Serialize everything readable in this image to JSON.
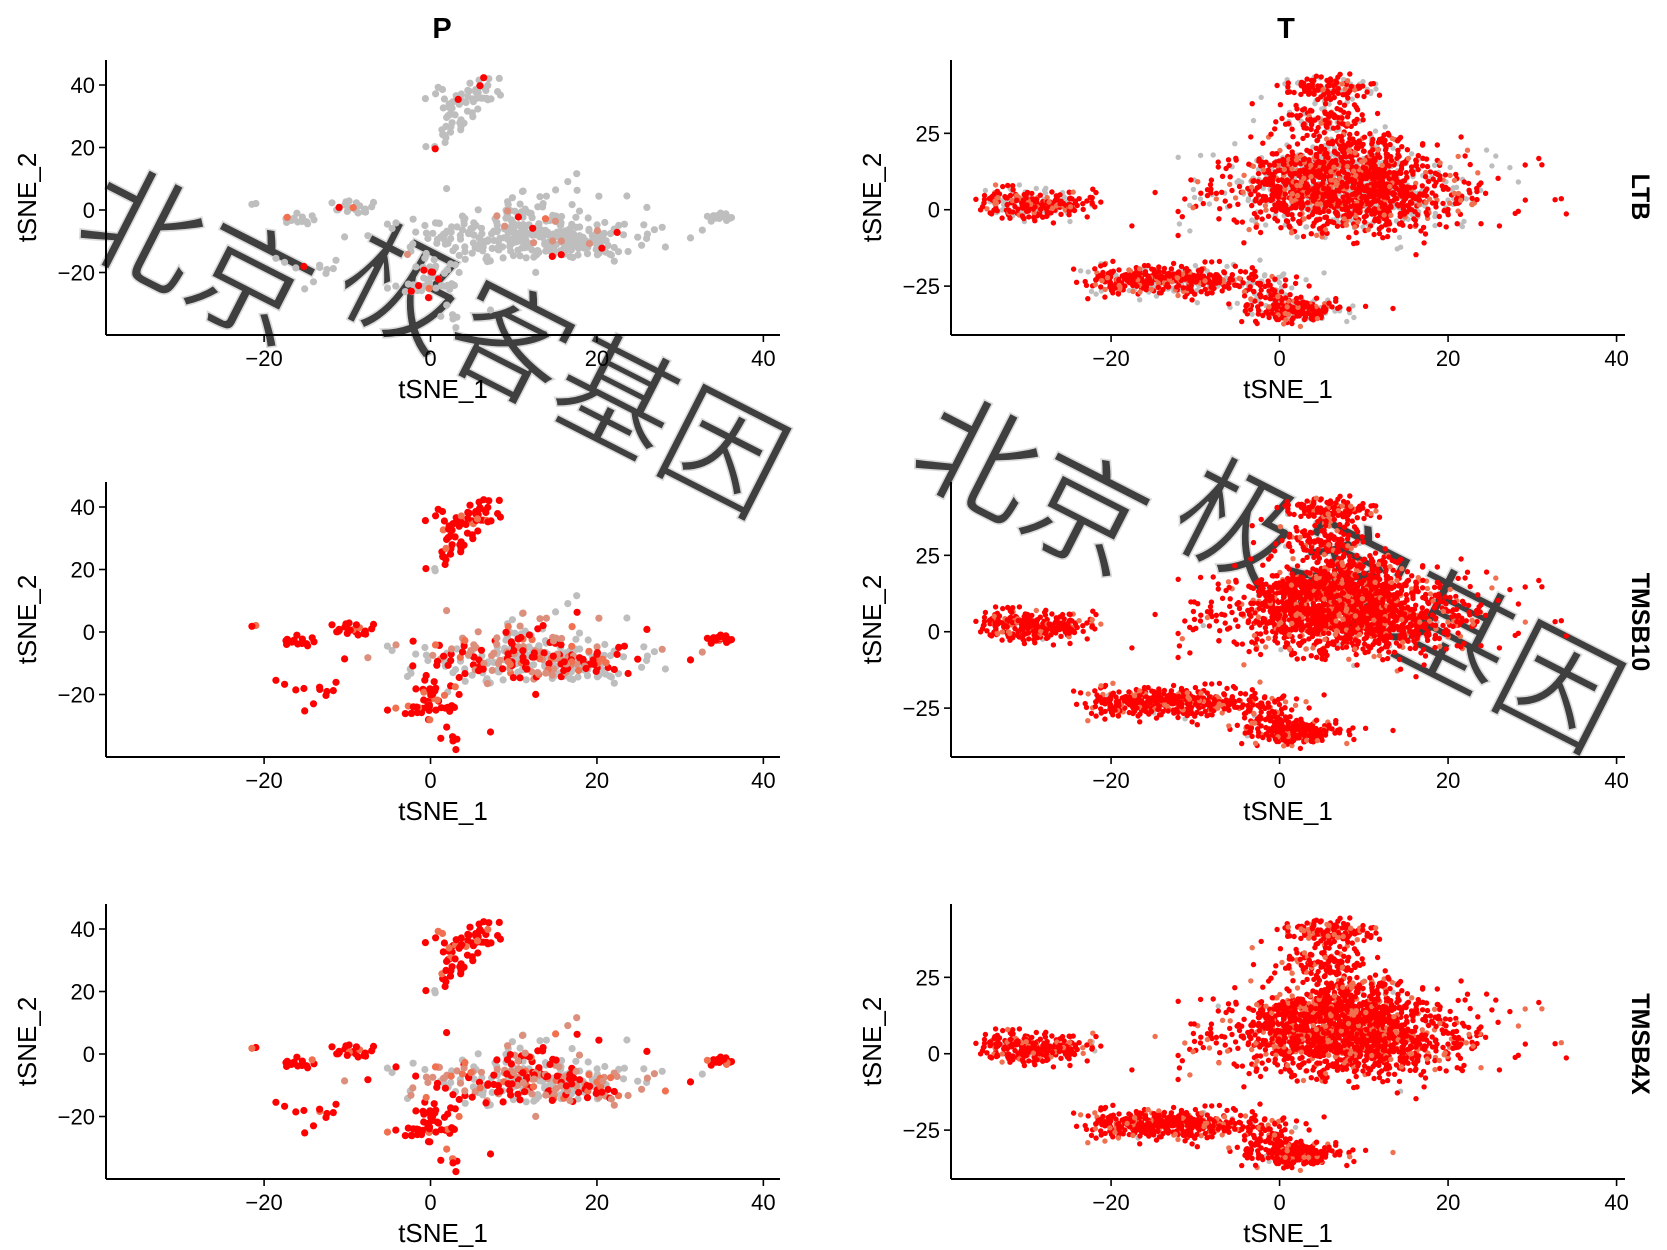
{
  "figure": {
    "columns": [
      "P",
      "T"
    ],
    "rows": [
      "LTB",
      "TMSB10",
      "TMSB4X"
    ],
    "watermark": [
      "北京",
      "极客基因"
    ]
  },
  "colors": {
    "low": "#bebebe",
    "high": "#ff0000",
    "mid": "#f07050"
  },
  "chart_data": [
    {
      "type": "scatter",
      "panel": "P",
      "gene": "LTB",
      "xlabel": "tSNE_1",
      "ylabel": "tSNE_2",
      "xlim": [
        -39,
        42
      ],
      "ylim": [
        -40,
        48
      ],
      "xticks": [
        -20,
        0,
        20,
        40
      ],
      "yticks": [
        -20,
        0,
        20,
        40
      ],
      "expression_level": 0.05,
      "grid": false
    },
    {
      "type": "scatter",
      "panel": "T",
      "gene": "LTB",
      "xlabel": "tSNE_1",
      "ylabel": "tSNE_2",
      "xlim": [
        -39,
        41
      ],
      "ylim": [
        -41,
        49
      ],
      "xticks": [
        -20,
        0,
        20,
        40
      ],
      "yticks": [
        -25,
        0,
        25
      ],
      "expression_level": 0.72,
      "grid": false
    },
    {
      "type": "scatter",
      "panel": "P",
      "gene": "TMSB10",
      "xlabel": "tSNE_1",
      "ylabel": "tSNE_2",
      "xlim": [
        -39,
        42
      ],
      "ylim": [
        -40,
        48
      ],
      "xticks": [
        -20,
        0,
        20,
        40
      ],
      "yticks": [
        -20,
        0,
        20,
        40
      ],
      "expression_level": 0.55,
      "grid": false
    },
    {
      "type": "scatter",
      "panel": "T",
      "gene": "TMSB10",
      "xlabel": "tSNE_1",
      "ylabel": "tSNE_2",
      "xlim": [
        -39,
        41
      ],
      "ylim": [
        -41,
        49
      ],
      "xticks": [
        -20,
        0,
        20,
        40
      ],
      "yticks": [
        -25,
        0,
        25
      ],
      "expression_level": 0.98,
      "grid": false
    },
    {
      "type": "scatter",
      "panel": "P",
      "gene": "TMSB4X",
      "xlabel": "tSNE_1",
      "ylabel": "tSNE_2",
      "xlim": [
        -39,
        42
      ],
      "ylim": [
        -40,
        48
      ],
      "xticks": [
        -20,
        0,
        20,
        40
      ],
      "yticks": [
        -20,
        0,
        20,
        40
      ],
      "expression_level": 0.62,
      "grid": false
    },
    {
      "type": "scatter",
      "panel": "T",
      "gene": "TMSB4X",
      "xlabel": "tSNE_1",
      "ylabel": "tSNE_2",
      "xlim": [
        -39,
        41
      ],
      "ylim": [
        -41,
        49
      ],
      "xticks": [
        -20,
        0,
        20,
        40
      ],
      "yticks": [
        -25,
        0,
        25
      ],
      "expression_level": 0.99,
      "grid": false
    }
  ],
  "clusters": {
    "P": [
      {
        "cx": 3,
        "cy": 33,
        "sx": 1.5,
        "sy": 3,
        "n": 40,
        "core": true
      },
      {
        "cx": 7,
        "cy": 39,
        "sx": 1.3,
        "sy": 2,
        "n": 22,
        "core": true
      },
      {
        "cx": 1.5,
        "cy": 26,
        "sx": 1,
        "sy": 2,
        "n": 10,
        "core": true
      },
      {
        "cx": 0,
        "cy": 20,
        "sx": 0.5,
        "sy": 1,
        "n": 3,
        "core": false
      },
      {
        "cx": 10,
        "cy": -8,
        "sx": 6.5,
        "sy": 4,
        "n": 260,
        "core": false
      },
      {
        "cx": 18,
        "cy": -10,
        "sx": 4,
        "sy": 2.5,
        "n": 90,
        "core": false
      },
      {
        "cx": 0.5,
        "cy": -22,
        "sx": 1.2,
        "sy": 3.5,
        "n": 40,
        "core": true
      },
      {
        "cx": -2,
        "cy": -24,
        "sx": 1.5,
        "sy": 1.5,
        "n": 12,
        "core": true
      },
      {
        "cx": -14,
        "cy": -20,
        "sx": 1.8,
        "sy": 2.5,
        "n": 12,
        "core": true
      },
      {
        "cx": -16,
        "cy": -3,
        "sx": 1.2,
        "sy": 0.8,
        "n": 15,
        "core": true
      },
      {
        "cx": -9,
        "cy": 1,
        "sx": 1.5,
        "sy": 1.2,
        "n": 22,
        "core": true
      },
      {
        "cx": 35,
        "cy": -2,
        "sx": 1,
        "sy": 0.6,
        "n": 22,
        "core": true
      },
      {
        "cx": 5,
        "cy": -35,
        "sx": 2.5,
        "sy": 1.5,
        "n": 6,
        "core": true
      },
      {
        "cx": 14,
        "cy": 3,
        "sx": 6,
        "sy": 3.5,
        "n": 20,
        "core": false
      },
      {
        "cx": -22,
        "cy": 2,
        "sx": 1,
        "sy": 1,
        "n": 2,
        "core": true
      }
    ],
    "T": [
      {
        "cx": -30,
        "cy": 2,
        "sx": 3,
        "sy": 2.8,
        "n": 260
      },
      {
        "cx": -25,
        "cy": 2,
        "sx": 1.5,
        "sy": 1.2,
        "n": 30
      },
      {
        "cx": 8,
        "cy": 6,
        "sx": 7,
        "sy": 6.5,
        "n": 1500
      },
      {
        "cx": 5,
        "cy": 14,
        "sx": 4,
        "sy": 3.5,
        "n": 300
      },
      {
        "cx": 6,
        "cy": 40,
        "sx": 2.8,
        "sy": 2,
        "n": 140
      },
      {
        "cx": 5,
        "cy": 30,
        "sx": 2.5,
        "sy": 2.5,
        "n": 120
      },
      {
        "cx": 9,
        "cy": 22,
        "sx": 2.6,
        "sy": 2.2,
        "n": 80
      },
      {
        "cx": -12,
        "cy": -23,
        "sx": 5.5,
        "sy": 2.5,
        "n": 420
      },
      {
        "cx": -18,
        "cy": -23,
        "sx": 2.5,
        "sy": 1.5,
        "n": 60
      },
      {
        "cx": 2,
        "cy": -33,
        "sx": 3,
        "sy": 1.8,
        "n": 220
      },
      {
        "cx": -1,
        "cy": -27,
        "sx": 1.5,
        "sy": 2.5,
        "n": 60
      },
      {
        "cx": 34,
        "cy": -1.5,
        "sx": 0.1,
        "sy": 0.1,
        "n": 1
      }
    ]
  }
}
